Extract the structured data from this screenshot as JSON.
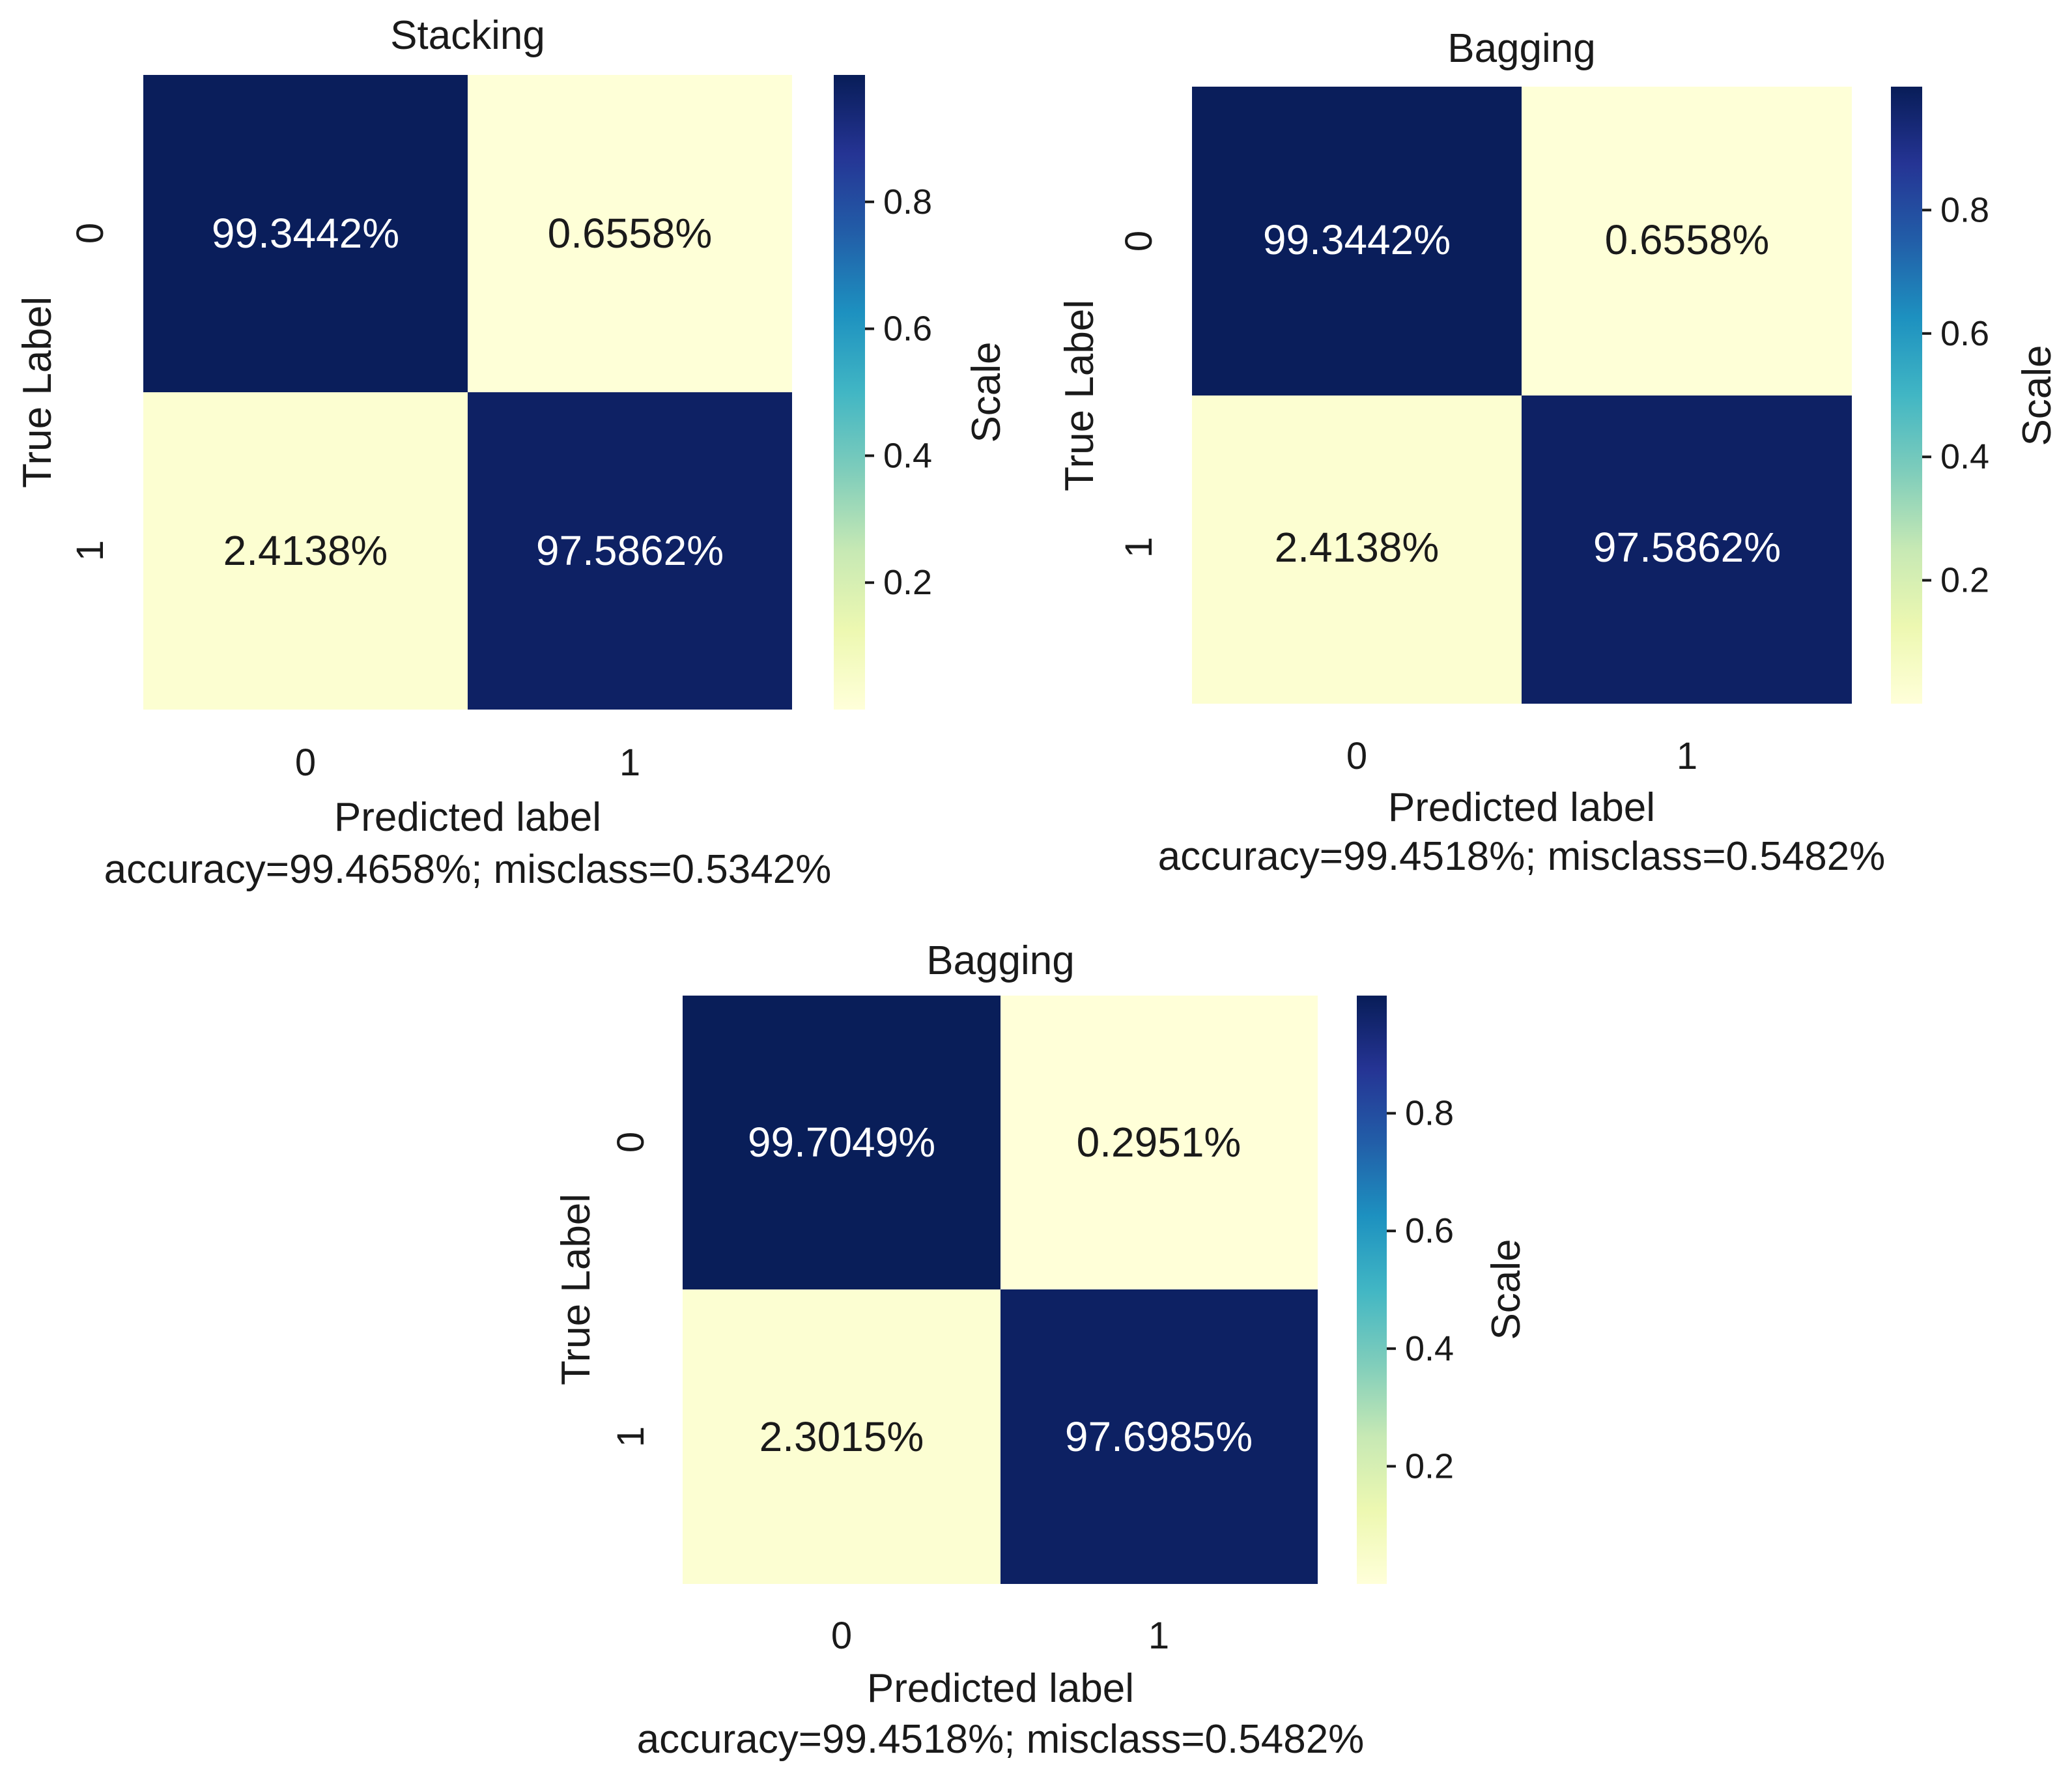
{
  "chart_data": [
    {
      "type": "heatmap",
      "title": "Stacking",
      "xlabel": "Predicted label",
      "ylabel": "True Label",
      "x_categories": [
        "0",
        "1"
      ],
      "y_categories": [
        "0",
        "1"
      ],
      "values": [
        [
          0.993442,
          0.006558
        ],
        [
          0.024138,
          0.975862
        ]
      ],
      "cell_labels": [
        [
          "99.3442%",
          "0.6558%"
        ],
        [
          "2.4138%",
          "97.5862%"
        ]
      ],
      "footer": "accuracy=99.4658%; misclass=0.5342%",
      "colorbar": {
        "label": "Scale",
        "ticks": [
          "0.2",
          "0.4",
          "0.6",
          "0.8"
        ],
        "range": [
          0,
          1
        ],
        "colormap": "YlGnBu"
      }
    },
    {
      "type": "heatmap",
      "title": "Bagging",
      "xlabel": "Predicted label",
      "ylabel": "True Label",
      "x_categories": [
        "0",
        "1"
      ],
      "y_categories": [
        "0",
        "1"
      ],
      "values": [
        [
          0.993442,
          0.006558
        ],
        [
          0.024138,
          0.975862
        ]
      ],
      "cell_labels": [
        [
          "99.3442%",
          "0.6558%"
        ],
        [
          "2.4138%",
          "97.5862%"
        ]
      ],
      "footer": "accuracy=99.4518%; misclass=0.5482%",
      "colorbar": {
        "label": "Scale",
        "ticks": [
          "0.2",
          "0.4",
          "0.6",
          "0.8"
        ],
        "range": [
          0,
          1
        ],
        "colormap": "YlGnBu"
      }
    },
    {
      "type": "heatmap",
      "title": "Bagging",
      "xlabel": "Predicted label",
      "ylabel": "True Label",
      "x_categories": [
        "0",
        "1"
      ],
      "y_categories": [
        "0",
        "1"
      ],
      "values": [
        [
          0.997049,
          0.002951
        ],
        [
          0.023015,
          0.976985
        ]
      ],
      "cell_labels": [
        [
          "99.7049%",
          "0.2951%"
        ],
        [
          "2.3015%",
          "97.6985%"
        ]
      ],
      "footer": "accuracy=99.4518%; misclass=0.5482%",
      "colorbar": {
        "label": "Scale",
        "ticks": [
          "0.2",
          "0.4",
          "0.6",
          "0.8"
        ],
        "range": [
          0,
          1
        ],
        "colormap": "YlGnBu"
      }
    }
  ],
  "colors": {
    "high": "#081d58",
    "low": "#ffffd9",
    "text_on_dark": "#ffffff",
    "text_on_light": "#1a1a1a"
  }
}
